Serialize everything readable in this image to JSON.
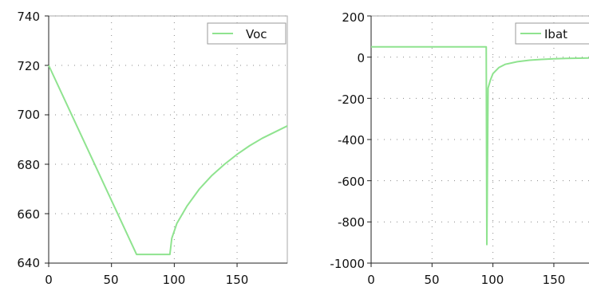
{
  "chart_data": [
    {
      "type": "line",
      "title": "",
      "xlabel": "",
      "ylabel": "",
      "xlim": [
        0,
        190
      ],
      "ylim": [
        640,
        740
      ],
      "xticks": [
        "0",
        "50",
        "100",
        "150"
      ],
      "yticks": [
        "640",
        "660",
        "680",
        "700",
        "720",
        "740"
      ],
      "grid": true,
      "legend_position": "top-right",
      "color": "#8fe38f",
      "series": [
        {
          "name": "Voc",
          "x": [
            0,
            70,
            96,
            96.5,
            98,
            102,
            110,
            120,
            130,
            140,
            150,
            160,
            170,
            180,
            190
          ],
          "y": [
            720,
            643.5,
            643.5,
            643.5,
            650,
            656,
            663,
            670,
            675.5,
            680,
            684,
            687.5,
            690.5,
            693,
            695.5
          ]
        }
      ]
    },
    {
      "type": "line",
      "title": "",
      "xlabel": "",
      "ylabel": "",
      "xlim": [
        0,
        190
      ],
      "ylim": [
        -1000,
        200
      ],
      "xticks": [
        "0",
        "50",
        "100",
        "150"
      ],
      "yticks": [
        "-1000",
        "-800",
        "-600",
        "-400",
        "-200",
        "0",
        "200"
      ],
      "grid": true,
      "legend_position": "top-right",
      "color": "#8fe38f",
      "series": [
        {
          "name": "Ibat",
          "x": [
            0,
            94,
            94.5,
            95,
            96,
            98,
            100,
            105,
            110,
            120,
            130,
            140,
            150,
            160,
            170,
            180,
            190
          ],
          "y": [
            50,
            50,
            50,
            -910,
            -150,
            -110,
            -80,
            -50,
            -35,
            -22,
            -15,
            -11,
            -8,
            -6,
            -5,
            -4,
            -3
          ]
        }
      ]
    }
  ]
}
